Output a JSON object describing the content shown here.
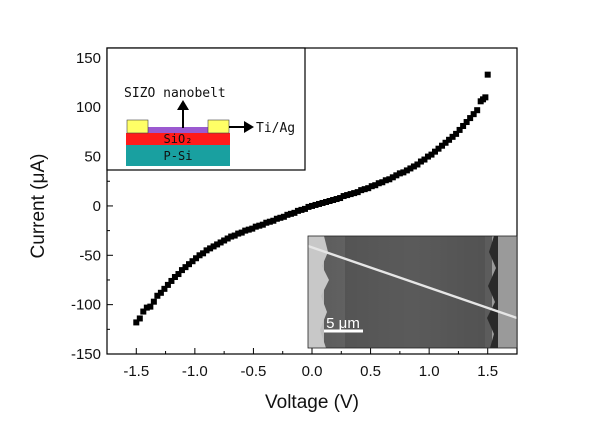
{
  "chart_data": {
    "type": "scatter",
    "xlabel": "Voltage (V)",
    "ylabel": "Current (μA)",
    "xlim": [
      -1.75,
      1.75
    ],
    "ylim": [
      -150,
      160
    ],
    "x_ticks": [
      -1.5,
      -1.0,
      -0.5,
      0.0,
      0.5,
      1.0,
      1.5
    ],
    "x_tick_labels": [
      "-1.5",
      "-1.0",
      "-0.5",
      "0.0",
      "0.5",
      "1.0",
      "1.5"
    ],
    "y_ticks": [
      -150,
      -100,
      -50,
      0,
      50,
      100,
      150
    ],
    "y_tick_labels": [
      "-150",
      "-100",
      "-50",
      "0",
      "50",
      "100",
      "150"
    ],
    "grid": false,
    "marker": "square",
    "marker_color": "#000000",
    "points": [
      [
        -1.5,
        -118
      ],
      [
        -1.47,
        -114
      ],
      [
        -1.44,
        -107
      ],
      [
        -1.41,
        -103
      ],
      [
        -1.38,
        -102
      ],
      [
        -1.35,
        -97
      ],
      [
        -1.32,
        -91
      ],
      [
        -1.29,
        -88
      ],
      [
        -1.26,
        -84
      ],
      [
        -1.23,
        -80
      ],
      [
        -1.2,
        -76
      ],
      [
        -1.17,
        -72
      ],
      [
        -1.14,
        -69
      ],
      [
        -1.11,
        -65
      ],
      [
        -1.08,
        -62
      ],
      [
        -1.05,
        -59
      ],
      [
        -1.02,
        -56
      ],
      [
        -0.99,
        -53
      ],
      [
        -0.96,
        -50
      ],
      [
        -0.93,
        -48
      ],
      [
        -0.9,
        -45
      ],
      [
        -0.87,
        -43
      ],
      [
        -0.84,
        -41
      ],
      [
        -0.81,
        -39
      ],
      [
        -0.78,
        -37
      ],
      [
        -0.75,
        -35
      ],
      [
        -0.72,
        -33
      ],
      [
        -0.69,
        -31
      ],
      [
        -0.66,
        -30
      ],
      [
        -0.63,
        -28
      ],
      [
        -0.6,
        -27
      ],
      [
        -0.57,
        -25
      ],
      [
        -0.54,
        -24
      ],
      [
        -0.51,
        -23
      ],
      [
        -0.48,
        -21
      ],
      [
        -0.45,
        -20
      ],
      [
        -0.42,
        -19
      ],
      [
        -0.39,
        -17
      ],
      [
        -0.36,
        -16
      ],
      [
        -0.33,
        -15
      ],
      [
        -0.3,
        -13
      ],
      [
        -0.27,
        -12
      ],
      [
        -0.24,
        -11
      ],
      [
        -0.21,
        -9
      ],
      [
        -0.18,
        -8
      ],
      [
        -0.15,
        -7
      ],
      [
        -0.12,
        -5
      ],
      [
        -0.09,
        -4
      ],
      [
        -0.06,
        -3
      ],
      [
        -0.03,
        -1
      ],
      [
        0.0,
        0
      ],
      [
        0.03,
        1
      ],
      [
        0.06,
        2
      ],
      [
        0.09,
        3
      ],
      [
        0.12,
        4
      ],
      [
        0.15,
        5
      ],
      [
        0.18,
        6
      ],
      [
        0.21,
        7
      ],
      [
        0.24,
        8
      ],
      [
        0.27,
        10
      ],
      [
        0.3,
        11
      ],
      [
        0.33,
        12
      ],
      [
        0.36,
        13
      ],
      [
        0.39,
        14
      ],
      [
        0.42,
        16
      ],
      [
        0.45,
        17
      ],
      [
        0.48,
        18
      ],
      [
        0.51,
        20
      ],
      [
        0.54,
        21
      ],
      [
        0.57,
        23
      ],
      [
        0.6,
        24
      ],
      [
        0.63,
        26
      ],
      [
        0.66,
        27
      ],
      [
        0.69,
        29
      ],
      [
        0.72,
        31
      ],
      [
        0.75,
        33
      ],
      [
        0.78,
        34
      ],
      [
        0.81,
        36
      ],
      [
        0.84,
        38
      ],
      [
        0.87,
        40
      ],
      [
        0.9,
        42
      ],
      [
        0.93,
        45
      ],
      [
        0.96,
        47
      ],
      [
        0.99,
        50
      ],
      [
        1.02,
        52
      ],
      [
        1.05,
        55
      ],
      [
        1.08,
        58
      ],
      [
        1.11,
        61
      ],
      [
        1.14,
        64
      ],
      [
        1.17,
        67
      ],
      [
        1.2,
        70
      ],
      [
        1.23,
        73
      ],
      [
        1.26,
        77
      ],
      [
        1.29,
        81
      ],
      [
        1.32,
        85
      ],
      [
        1.35,
        89
      ],
      [
        1.38,
        93
      ],
      [
        1.41,
        97
      ],
      [
        1.44,
        106
      ],
      [
        1.46,
        108
      ],
      [
        1.48,
        110
      ],
      [
        1.5,
        133
      ]
    ]
  },
  "inset_schematic": {
    "nanobelt_label": "SIZO nanobelt",
    "contact_label": "Ti/Ag",
    "oxide_label": "SiO₂",
    "substrate_label": "P-Si",
    "colors": {
      "contact": "#ffff66",
      "nanobelt": "#9b59d0",
      "oxide": "#ff1a1a",
      "substrate": "#19a0a0"
    }
  },
  "inset_image": {
    "scale_bar_label": "5 μm"
  }
}
